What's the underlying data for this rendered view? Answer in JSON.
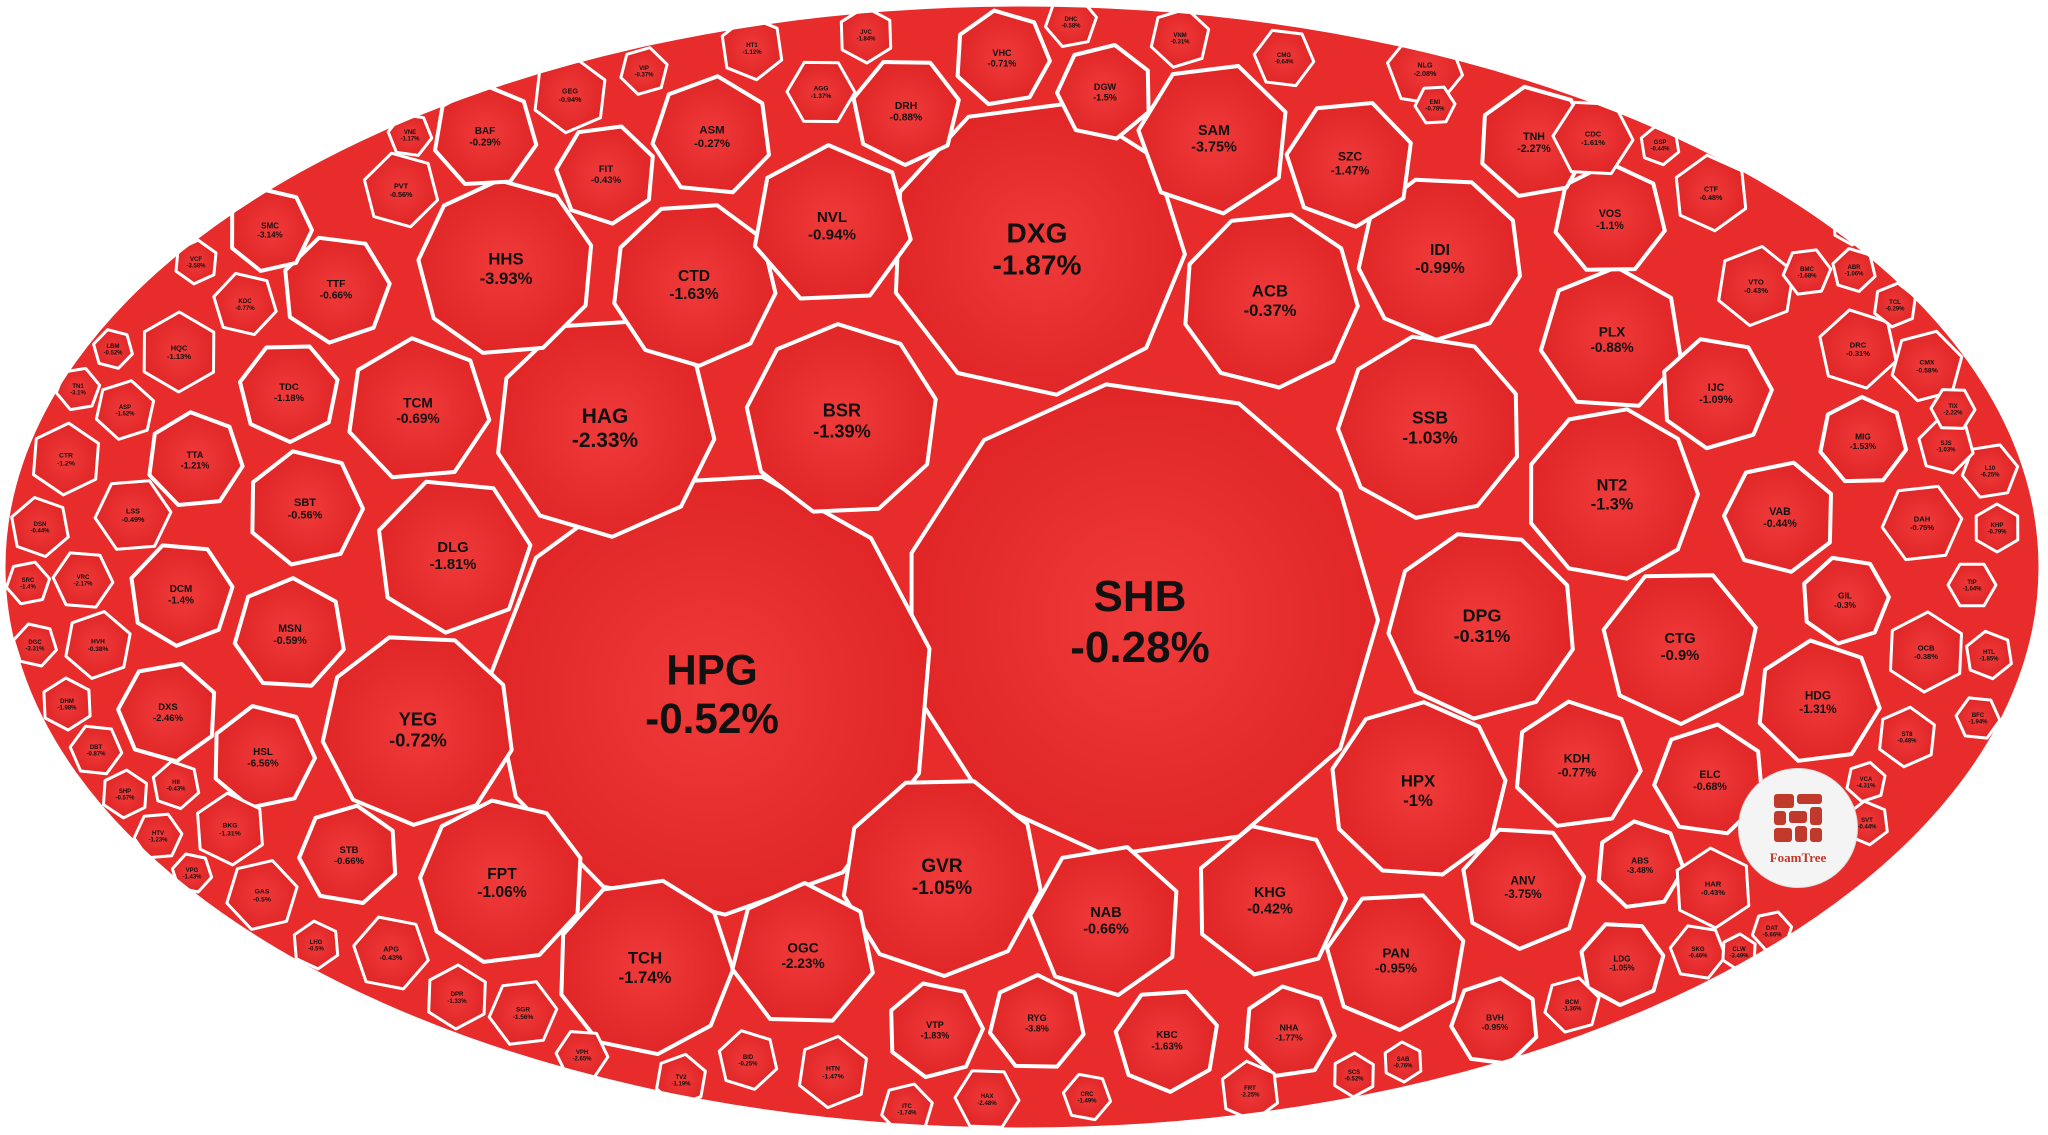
{
  "chart_data": {
    "type": "treemap",
    "colors": {
      "cell_fill": "#e82b2b",
      "cell_fill_dark": "#c71f1f",
      "cell_border": "#ffffff",
      "label": "#111111"
    },
    "cells": [
      {
        "ticker": "SHB",
        "change": "-0.28%",
        "value": -0.28
      },
      {
        "ticker": "HPG",
        "change": "-0.52%",
        "value": -0.52
      },
      {
        "ticker": "DXG",
        "change": "-1.87%",
        "value": -1.87
      },
      {
        "ticker": "HAG",
        "change": "-2.33%",
        "value": -2.33
      },
      {
        "ticker": "BSR",
        "change": "-1.39%",
        "value": -1.39
      },
      {
        "ticker": "GVR",
        "change": "-1.05%",
        "value": -1.05
      },
      {
        "ticker": "YEG",
        "change": "-0.72%",
        "value": -0.72
      },
      {
        "ticker": "HPX",
        "change": "-1%",
        "value": -1.0
      },
      {
        "ticker": "DPG",
        "change": "-0.31%",
        "value": -0.31
      },
      {
        "ticker": "SSB",
        "change": "-1.03%",
        "value": -1.03
      },
      {
        "ticker": "NT2",
        "change": "-1.3%",
        "value": -1.3
      },
      {
        "ticker": "ACB",
        "change": "-0.37%",
        "value": -0.37
      },
      {
        "ticker": "HHS",
        "change": "-3.93%",
        "value": -3.93
      },
      {
        "ticker": "CTD",
        "change": "-1.63%",
        "value": -1.63
      },
      {
        "ticker": "NVL",
        "change": "-0.94%",
        "value": -0.94
      },
      {
        "ticker": "SAM",
        "change": "-3.75%",
        "value": -3.75
      },
      {
        "ticker": "IDI",
        "change": "-0.99%",
        "value": -0.99
      },
      {
        "ticker": "PLX",
        "change": "-0.88%",
        "value": -0.88
      },
      {
        "ticker": "CTG",
        "change": "-0.9%",
        "value": -0.9
      },
      {
        "ticker": "TCH",
        "change": "-1.74%",
        "value": -1.74
      },
      {
        "ticker": "FPT",
        "change": "-1.06%",
        "value": -1.06
      },
      {
        "ticker": "DLG",
        "change": "-1.81%",
        "value": -1.81
      },
      {
        "ticker": "TCM",
        "change": "-0.69%",
        "value": -0.69
      },
      {
        "ticker": "NAB",
        "change": "-0.66%",
        "value": -0.66
      },
      {
        "ticker": "KHG",
        "change": "-0.42%",
        "value": -0.42
      },
      {
        "ticker": "OGC",
        "change": "-2.23%",
        "value": -2.23
      },
      {
        "ticker": "PAN",
        "change": "-0.95%",
        "value": -0.95
      },
      {
        "ticker": "KDH",
        "change": "-0.77%",
        "value": -0.77
      },
      {
        "ticker": "ELC",
        "change": "-0.68%",
        "value": -0.68
      },
      {
        "ticker": "ANV",
        "change": "-3.75%",
        "value": -3.75
      },
      {
        "ticker": "HDG",
        "change": "-1.31%",
        "value": -1.31
      },
      {
        "ticker": "VAB",
        "change": "-0.44%",
        "value": -0.44
      },
      {
        "ticker": "IJC",
        "change": "-1.09%",
        "value": -1.09
      },
      {
        "ticker": "VOS",
        "change": "-1.1%",
        "value": -1.1
      },
      {
        "ticker": "SZC",
        "change": "-1.47%",
        "value": -1.47
      },
      {
        "ticker": "TNH",
        "change": "-2.27%",
        "value": -2.27
      },
      {
        "ticker": "ASM",
        "change": "-0.27%",
        "value": -0.27
      },
      {
        "ticker": "DRH",
        "change": "-0.88%",
        "value": -0.88
      },
      {
        "ticker": "VHC",
        "change": "-0.71%",
        "value": -0.71
      },
      {
        "ticker": "DGW",
        "change": "-1.5%",
        "value": -1.5
      },
      {
        "ticker": "TTF",
        "change": "-0.66%",
        "value": -0.66
      },
      {
        "ticker": "BAF",
        "change": "-0.29%",
        "value": -0.29
      },
      {
        "ticker": "FIT",
        "change": "-0.43%",
        "value": -0.43
      },
      {
        "ticker": "SBT",
        "change": "-0.56%",
        "value": -0.56
      },
      {
        "ticker": "MSN",
        "change": "-0.59%",
        "value": -0.59
      },
      {
        "ticker": "TDC",
        "change": "-1.18%",
        "value": -1.18
      },
      {
        "ticker": "HSL",
        "change": "-6.56%",
        "value": -6.56
      },
      {
        "ticker": "STB",
        "change": "-0.66%",
        "value": -0.66
      },
      {
        "ticker": "DCM",
        "change": "-1.4%",
        "value": -1.4
      },
      {
        "ticker": "TTA",
        "change": "-1.21%",
        "value": -1.21
      },
      {
        "ticker": "DXS",
        "change": "-2.46%",
        "value": -2.46
      },
      {
        "ticker": "VTP",
        "change": "-1.83%",
        "value": -1.83
      },
      {
        "ticker": "RYG",
        "change": "-3.8%",
        "value": -3.8
      },
      {
        "ticker": "KBC",
        "change": "-1.63%",
        "value": -1.63
      },
      {
        "ticker": "NHA",
        "change": "-1.77%",
        "value": -1.77
      },
      {
        "ticker": "BVH",
        "change": "-0.95%",
        "value": -0.95
      },
      {
        "ticker": "LDG",
        "change": "-1.05%",
        "value": -1.05
      },
      {
        "ticker": "ABS",
        "change": "-3.48%",
        "value": -3.48
      },
      {
        "ticker": "HAR",
        "change": "-0.43%",
        "value": -0.43
      },
      {
        "ticker": "GIL",
        "change": "-0.3%",
        "value": -0.3
      },
      {
        "ticker": "MIG",
        "change": "-1.53%",
        "value": -1.53
      },
      {
        "ticker": "OCB",
        "change": "-0.38%",
        "value": -0.38
      },
      {
        "ticker": "DAH",
        "change": "-0.75%",
        "value": -0.75
      },
      {
        "ticker": "DRC",
        "change": "-0.31%",
        "value": -0.31
      },
      {
        "ticker": "VTO",
        "change": "-0.43%",
        "value": -0.43
      },
      {
        "ticker": "CDC",
        "change": "-1.61%",
        "value": -1.61
      },
      {
        "ticker": "CTF",
        "change": "-0.48%",
        "value": -0.48
      },
      {
        "ticker": "CMX",
        "change": "-0.58%",
        "value": -0.58
      },
      {
        "ticker": "NLG",
        "change": "-2.08%",
        "value": -2.08
      },
      {
        "ticker": "HQC",
        "change": "-1.13%",
        "value": -1.13
      },
      {
        "ticker": "SMC",
        "change": "-3.14%",
        "value": -3.14
      },
      {
        "ticker": "PVT",
        "change": "-0.56%",
        "value": -0.56
      },
      {
        "ticker": "GEG",
        "change": "-0.94%",
        "value": -0.94
      },
      {
        "ticker": "AGG",
        "change": "-1.37%",
        "value": -1.37
      },
      {
        "ticker": "HT1",
        "change": "-1.12%",
        "value": -1.12
      },
      {
        "ticker": "VNM",
        "change": "-0.31%",
        "value": -0.31
      },
      {
        "ticker": "CMG",
        "change": "-0.64%",
        "value": -0.64
      },
      {
        "ticker": "JVC",
        "change": "-1.84%",
        "value": -1.84
      },
      {
        "ticker": "DHC",
        "change": "-0.58%",
        "value": -0.58
      },
      {
        "ticker": "KDC",
        "change": "-0.77%",
        "value": -0.77
      },
      {
        "ticker": "CTR",
        "change": "-1.2%",
        "value": -1.2
      },
      {
        "ticker": "LSS",
        "change": "-0.49%",
        "value": -0.49
      },
      {
        "ticker": "DSN",
        "change": "-0.44%",
        "value": -0.44
      },
      {
        "ticker": "HVH",
        "change": "-0.38%",
        "value": -0.38
      },
      {
        "ticker": "VRC",
        "change": "-2.17%",
        "value": -2.17
      },
      {
        "ticker": "BKG",
        "change": "-1.31%",
        "value": -1.31
      },
      {
        "ticker": "GAS",
        "change": "-0.5%",
        "value": -0.5
      },
      {
        "ticker": "APG",
        "change": "-0.43%",
        "value": -0.43
      },
      {
        "ticker": "DPR",
        "change": "-1.33%",
        "value": -1.33
      },
      {
        "ticker": "SGR",
        "change": "-1.56%",
        "value": -1.56
      },
      {
        "ticker": "BID",
        "change": "-0.25%",
        "value": -0.25
      },
      {
        "ticker": "HTN",
        "change": "-1.47%",
        "value": -1.47
      },
      {
        "ticker": "HAX",
        "change": "-2.48%",
        "value": -2.48
      },
      {
        "ticker": "FRT",
        "change": "-2.25%",
        "value": -2.25
      },
      {
        "ticker": "BCM",
        "change": "-1.36%",
        "value": -1.36
      },
      {
        "ticker": "SKG",
        "change": "-0.46%",
        "value": -0.46
      },
      {
        "ticker": "KHP",
        "change": "-0.79%",
        "value": -0.79
      },
      {
        "ticker": "L10",
        "change": "-6.25%",
        "value": -6.25
      },
      {
        "ticker": "SJS",
        "change": "-1.03%",
        "value": -1.03
      },
      {
        "ticker": "ST8",
        "change": "-0.48%",
        "value": -0.48
      },
      {
        "ticker": "TIP",
        "change": "-1.04%",
        "value": -1.04
      },
      {
        "ticker": "HTL",
        "change": "-1.85%",
        "value": -1.85
      },
      {
        "ticker": "ASP",
        "change": "-1.52%",
        "value": -1.52
      },
      {
        "ticker": "DBT",
        "change": "-0.87%",
        "value": -0.87
      },
      {
        "ticker": "DHM",
        "change": "-1.98%",
        "value": -1.98
      },
      {
        "ticker": "SRC",
        "change": "-1.4%",
        "value": -1.4
      },
      {
        "ticker": "DGC",
        "change": "-3.31%",
        "value": -3.31
      },
      {
        "ticker": "SHP",
        "change": "-0.57%",
        "value": -0.57
      },
      {
        "ticker": "HTV",
        "change": "-1.23%",
        "value": -1.23
      },
      {
        "ticker": "HII",
        "change": "-0.43%",
        "value": -0.43
      },
      {
        "ticker": "TV2",
        "change": "-1.19%",
        "value": -1.19
      },
      {
        "ticker": "VPH",
        "change": "-2.65%",
        "value": -2.65
      },
      {
        "ticker": "LHG",
        "change": "-0.5%",
        "value": -0.5
      },
      {
        "ticker": "ITC",
        "change": "-1.74%",
        "value": -1.74
      },
      {
        "ticker": "CRC",
        "change": "-1.49%",
        "value": -1.49
      },
      {
        "ticker": "SCS",
        "change": "-0.52%",
        "value": -0.52
      },
      {
        "ticker": "BMC",
        "change": "-1.68%",
        "value": -1.68
      },
      {
        "ticker": "ABR",
        "change": "-1.06%",
        "value": -1.06
      },
      {
        "ticker": "TCL",
        "change": "-0.29%",
        "value": -0.29
      },
      {
        "ticker": "TIX",
        "change": "-2.22%",
        "value": -2.22
      },
      {
        "ticker": "SVT",
        "change": "-0.44%",
        "value": -0.44
      },
      {
        "ticker": "VIP",
        "change": "-0.37%",
        "value": -0.37
      },
      {
        "ticker": "VNE",
        "change": "-1.17%",
        "value": -1.17
      },
      {
        "ticker": "TYA",
        "change": "-0.8%",
        "value": -0.8
      },
      {
        "ticker": "TN1",
        "change": "-3.1%",
        "value": -3.1
      },
      {
        "ticker": "LBM",
        "change": "-0.52%",
        "value": -0.52
      },
      {
        "ticker": "VCF",
        "change": "-3.58%",
        "value": -3.58
      },
      {
        "ticker": "EMI",
        "change": "-0.78%",
        "value": -0.78
      },
      {
        "ticker": "GSP",
        "change": "-0.44%",
        "value": -0.44
      },
      {
        "ticker": "VCA",
        "change": "-4.31%",
        "value": -4.31
      },
      {
        "ticker": "BFC",
        "change": "-1.94%",
        "value": -1.94
      },
      {
        "ticker": "SAB",
        "change": "-0.76%",
        "value": -0.76
      },
      {
        "ticker": "DAT",
        "change": "-5.66%",
        "value": -5.66
      },
      {
        "ticker": "VPG",
        "change": "-1.43%",
        "value": -1.43
      },
      {
        "ticker": "CLW",
        "change": "-3.49%",
        "value": -3.49
      }
    ]
  },
  "branding": {
    "name": "FoamTree"
  }
}
